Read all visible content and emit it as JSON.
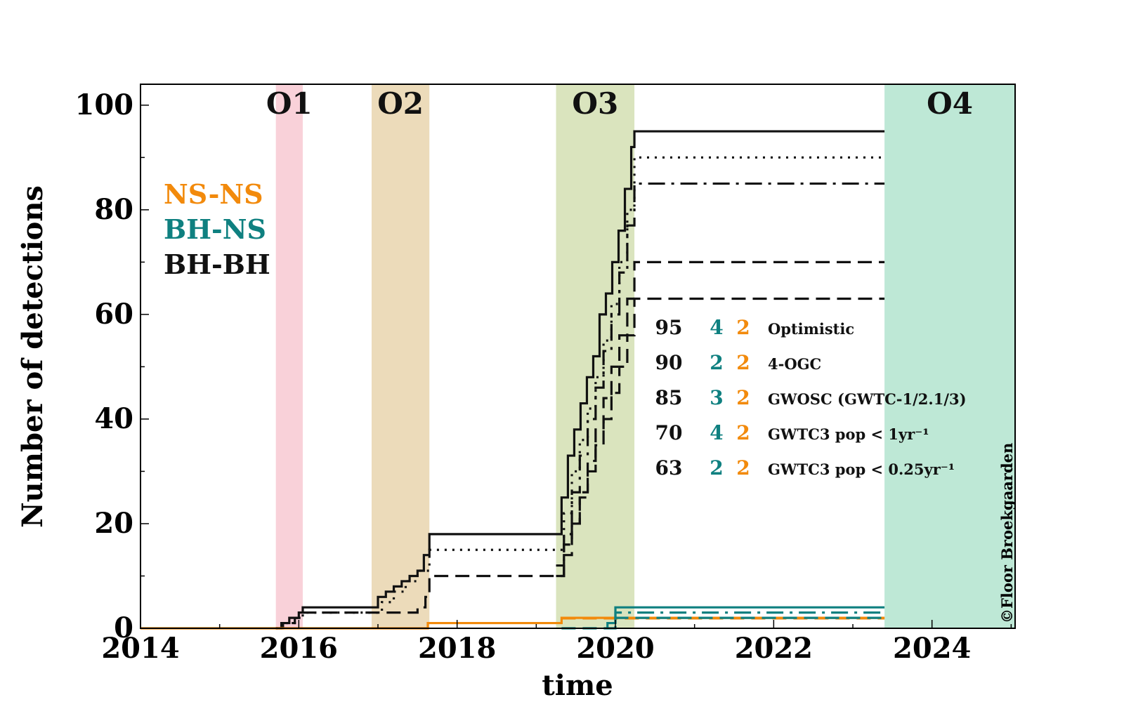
{
  "chart_data": {
    "type": "line",
    "title": "",
    "xlabel": "time",
    "ylabel": "Number of detections",
    "xlim": [
      2014,
      2025.05
    ],
    "ylim": [
      0,
      104
    ],
    "x_ticks": [
      "2014",
      "2016",
      "2018",
      "2020",
      "2022",
      "2024"
    ],
    "y_ticks": [
      "0",
      "20",
      "40",
      "60",
      "80",
      "100"
    ],
    "observing_runs": [
      {
        "label": "O1",
        "start": 2015.71,
        "end": 2016.05,
        "color": "#f7c1cc"
      },
      {
        "label": "O2",
        "start": 2016.92,
        "end": 2017.65,
        "color": "#e6cfa3"
      },
      {
        "label": "O3",
        "start": 2019.25,
        "end": 2020.24,
        "color": "#cddba8"
      },
      {
        "label": "O4",
        "start": 2023.4,
        "end": 2025.05,
        "color": "#a8e0c8"
      }
    ],
    "type_legend": [
      {
        "label": "NS-NS",
        "color": "#f28a0c"
      },
      {
        "label": "BH-NS",
        "color": "#0f8080"
      },
      {
        "label": "BH-BH",
        "color": "#111111"
      }
    ],
    "catalog_table": [
      {
        "bbh": "95",
        "bhns": "4",
        "nsns": "2",
        "name": "Optimistic"
      },
      {
        "bbh": "90",
        "bhns": "2",
        "nsns": "2",
        "name": "4-OGC"
      },
      {
        "bbh": "85",
        "bhns": "3",
        "nsns": "2",
        "name": "GWOSC (GWTC-1/2.1/3)"
      },
      {
        "bbh": "70",
        "bhns": "4",
        "nsns": "2",
        "name": "GWTC3 pop < 1yr⁻¹"
      },
      {
        "bbh": "63",
        "bhns": "2",
        "nsns": "2",
        "name": "GWTC3 pop < 0.25yr⁻¹"
      }
    ],
    "series": [
      {
        "name": "BH-BH Optimistic",
        "style": "solid",
        "color": "#111111",
        "x": [
          2015.71,
          2015.78,
          2015.88,
          2016.0,
          2016.05,
          2016.92,
          2017.0,
          2017.1,
          2017.2,
          2017.3,
          2017.4,
          2017.5,
          2017.58,
          2017.65,
          2019.25,
          2019.32,
          2019.4,
          2019.48,
          2019.56,
          2019.64,
          2019.72,
          2019.8,
          2019.88,
          2019.96,
          2020.04,
          2020.12,
          2020.2,
          2020.24,
          2023.4
        ],
        "y": [
          0,
          1,
          2,
          3,
          4,
          4,
          6,
          7,
          8,
          9,
          10,
          11,
          14,
          18,
          18,
          25,
          33,
          38,
          43,
          48,
          52,
          60,
          64,
          70,
          76,
          84,
          92,
          95,
          95
        ]
      },
      {
        "name": "BH-BH 4-OGC",
        "style": "dotted",
        "color": "#111111",
        "x": [
          2015.71,
          2015.8,
          2015.95,
          2016.05,
          2016.92,
          2017.05,
          2017.2,
          2017.35,
          2017.5,
          2017.65,
          2019.25,
          2019.35,
          2019.45,
          2019.55,
          2019.65,
          2019.75,
          2019.85,
          2019.95,
          2020.05,
          2020.15,
          2020.24,
          2023.4
        ],
        "y": [
          0,
          1,
          2,
          3,
          3,
          5,
          7,
          9,
          11,
          15,
          15,
          22,
          30,
          36,
          42,
          48,
          55,
          62,
          70,
          80,
          90,
          90
        ]
      },
      {
        "name": "BH-BH GWOSC (GWTC-1/2.1/3)",
        "style": "dashdot",
        "color": "#111111",
        "x": [
          2019.25,
          2019.35,
          2019.45,
          2019.55,
          2019.65,
          2019.75,
          2019.85,
          2019.95,
          2020.05,
          2020.15,
          2020.24,
          2023.4
        ],
        "y": [
          10,
          18,
          26,
          33,
          40,
          46,
          53,
          60,
          68,
          77,
          85,
          85
        ]
      },
      {
        "name": "BH-BH GWTC3 pop < 1yr⁻¹",
        "style": "dashed",
        "color": "#111111",
        "x": [
          2015.71,
          2015.8,
          2015.95,
          2016.05,
          2016.92,
          2017.3,
          2017.5,
          2017.6,
          2017.65,
          2019.25,
          2019.35,
          2019.45,
          2019.55,
          2019.65,
          2019.75,
          2019.85,
          2019.95,
          2020.05,
          2020.15,
          2020.24,
          2023.4
        ],
        "y": [
          0,
          1,
          2,
          3,
          3,
          3,
          4,
          6,
          10,
          10,
          14,
          20,
          26,
          32,
          38,
          44,
          50,
          56,
          63,
          70,
          70
        ]
      },
      {
        "name": "BH-BH GWTC3 pop < 0.25yr⁻¹",
        "style": "dashed",
        "color": "#111111",
        "x": [
          2019.25,
          2019.35,
          2019.45,
          2019.55,
          2019.65,
          2019.75,
          2019.85,
          2019.95,
          2020.05,
          2020.15,
          2020.24,
          2023.4
        ],
        "y": [
          12,
          16,
          20,
          25,
          30,
          35,
          40,
          45,
          50,
          56,
          63,
          63
        ]
      },
      {
        "name": "NS-NS all catalogs",
        "style": "solid",
        "color": "#f28a0c",
        "x": [
          2014.0,
          2017.63,
          2017.63,
          2019.32,
          2019.32,
          2023.4
        ],
        "y": [
          0,
          0,
          1,
          1,
          2,
          2
        ]
      },
      {
        "name": "NS-NS dashed",
        "style": "dashed",
        "color": "#f28a0c",
        "x": [
          2019.32,
          2023.4
        ],
        "y": [
          1.9,
          1.9
        ]
      },
      {
        "name": "BH-NS Optimistic",
        "style": "solid",
        "color": "#0f8080",
        "x": [
          2019.9,
          2019.9,
          2020.0,
          2020.0,
          2023.4
        ],
        "y": [
          0,
          1,
          1,
          4,
          4
        ]
      },
      {
        "name": "BH-NS GWOSC",
        "style": "dashdot",
        "color": "#0f8080",
        "x": [
          2020.0,
          2020.0,
          2023.4
        ],
        "y": [
          1,
          3,
          3
        ]
      },
      {
        "name": "BH-NS 4-OGC",
        "style": "dashed",
        "color": "#0f8080",
        "x": [
          2019.32,
          2020.0,
          2020.0,
          2023.4
        ],
        "y": [
          0,
          0,
          2,
          2
        ]
      }
    ]
  },
  "credit": "©Floor Broekgaarden"
}
